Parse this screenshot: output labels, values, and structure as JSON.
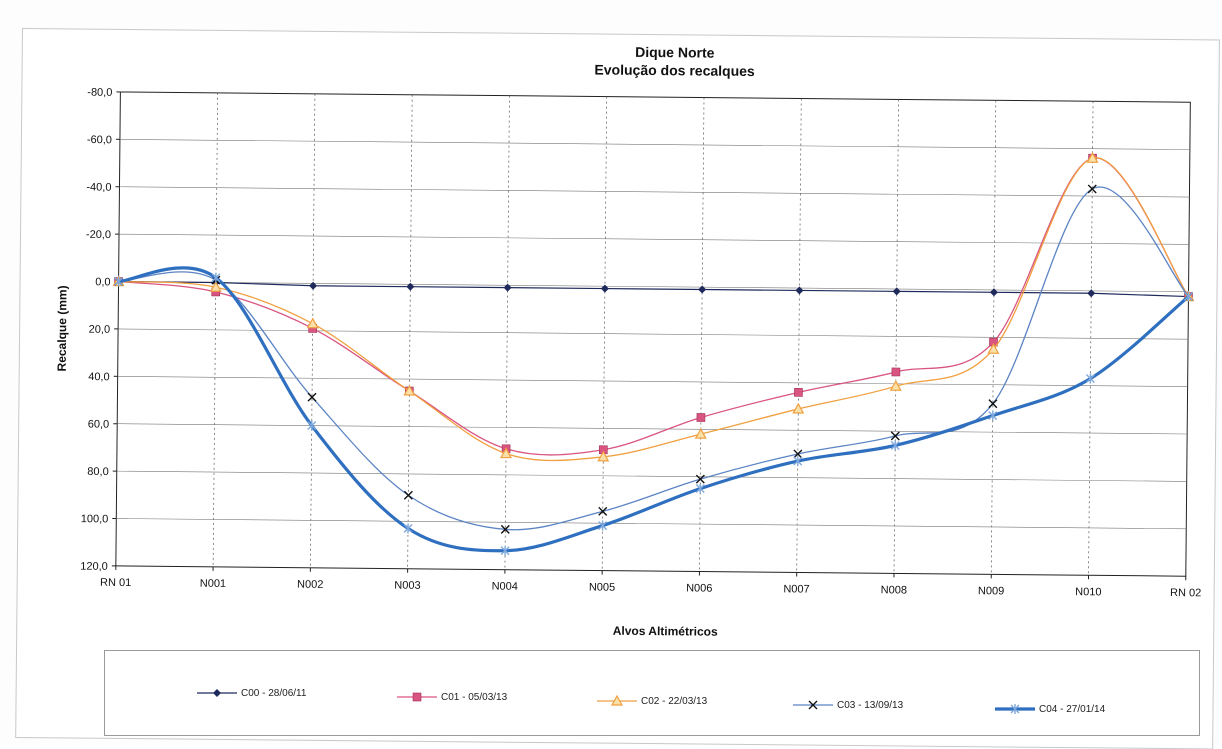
{
  "chart_data": {
    "type": "line",
    "title": "Dique Norte",
    "subtitle": "Evolução dos recalques",
    "xlabel": "Alvos Altimétricos",
    "ylabel": "Recalque (mm)",
    "categories": [
      "RN 01",
      "N001",
      "N002",
      "N003",
      "N004",
      "N005",
      "N006",
      "N007",
      "N008",
      "N009",
      "N010",
      "RN 02"
    ],
    "yticks": [
      "-80,0",
      "-60,0",
      "-40,0",
      "-20,0",
      "0,0",
      "20,0",
      "40,0",
      "60,0",
      "80,0",
      "100,0",
      "120,0"
    ],
    "ylim": [
      -80,
      120
    ],
    "y_axis_reversed": true,
    "grid": true,
    "legend_position": "bottom",
    "series": [
      {
        "name": "C00 - 28/06/11",
        "color": "#1f2a5c",
        "marker": "diamond",
        "values": [
          0,
          0,
          1,
          1,
          1,
          1,
          1,
          1,
          1,
          1,
          1,
          2
        ]
      },
      {
        "name": "C01 - 05/03/13",
        "color": "#d9547f",
        "marker": "square",
        "values": [
          0,
          4,
          19,
          45,
          69,
          69,
          55,
          44,
          35,
          22,
          -56,
          2
        ]
      },
      {
        "name": "C02 - 22/03/13",
        "color": "#f0a040",
        "marker": "triangle",
        "values": [
          0,
          2,
          17,
          45,
          71,
          72,
          62,
          51,
          41,
          25,
          -56,
          2
        ]
      },
      {
        "name": "C03 - 13/09/13",
        "color": "#5b84c4",
        "marker": "x",
        "values": [
          0,
          -1,
          48,
          89,
          103,
          95,
          81,
          70,
          62,
          48,
          -43,
          2
        ]
      },
      {
        "name": "C04 - 27/01/14",
        "color": "#2e6fc0",
        "marker": "star",
        "values": [
          0,
          -2,
          60,
          103,
          112,
          101,
          85,
          73,
          66,
          53,
          37,
          2
        ]
      }
    ]
  }
}
